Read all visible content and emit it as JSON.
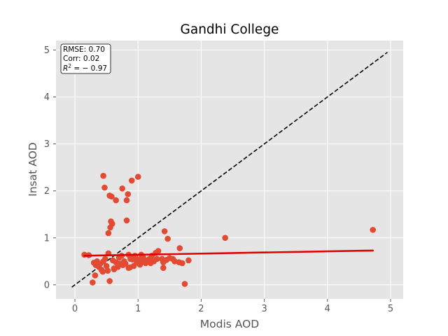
{
  "chart_data": {
    "type": "scatter",
    "title": "Gandhi College",
    "xlabel": "Modis AOD",
    "ylabel": "Insat AOD",
    "xlim": [
      -0.3,
      5.2
    ],
    "ylim": [
      -0.3,
      5.2
    ],
    "xticks": [
      "0",
      "1",
      "2",
      "3",
      "4",
      "5"
    ],
    "yticks": [
      "0",
      "1",
      "2",
      "3",
      "4",
      "5"
    ],
    "grid": true,
    "stats": {
      "rmse": "RMSE: 0.70",
      "corr": "Corr: 0.02",
      "r2_prefix": "R",
      "r2_sup": "2",
      "r2_suffix": " = − 0.97"
    },
    "reference_line": {
      "style": "dashed",
      "color": "#000000",
      "x": [
        -0.05,
        4.95
      ],
      "y": [
        -0.05,
        4.95
      ]
    },
    "fit_line": {
      "color": "#e00000",
      "x": [
        0.15,
        4.72
      ],
      "y": [
        0.62,
        0.73
      ]
    },
    "points": {
      "color": "#e24a33",
      "x": [
        0.45,
        0.47,
        0.75,
        0.9,
        1.0,
        0.55,
        0.58,
        0.84,
        0.65,
        0.82,
        0.57,
        0.59,
        0.82,
        0.53,
        0.15,
        2.38,
        1.42,
        1.47,
        4.72,
        1.66,
        0.53,
        0.85,
        0.95,
        1.05,
        0.3,
        0.35,
        0.4,
        0.48,
        0.6,
        0.65,
        0.7,
        0.72,
        0.78,
        0.88,
        0.92,
        0.98,
        1.02,
        1.08,
        1.12,
        1.18,
        1.22,
        1.28,
        1.32,
        1.38,
        0.33,
        0.38,
        0.42,
        0.5,
        0.62,
        0.68,
        0.76,
        0.8,
        0.87,
        0.93,
        1.03,
        1.1,
        1.15,
        1.2,
        1.25,
        1.3,
        1.4,
        1.45,
        1.5,
        1.55,
        1.58,
        1.65,
        1.7,
        1.8,
        0.56,
        0.44,
        0.74,
        0.96,
        0.45,
        0.62,
        0.85,
        1.4,
        0.22,
        0.28,
        0.55,
        1.74,
        0.32,
        0.52,
        0.7,
        0.91
      ],
      "y": [
        2.32,
        2.07,
        2.05,
        2.22,
        2.3,
        1.9,
        1.88,
        1.93,
        1.8,
        1.8,
        1.35,
        1.3,
        1.37,
        1.1,
        0.64,
        1.0,
        1.14,
        0.98,
        1.17,
        0.78,
        0.67,
        0.64,
        0.62,
        0.64,
        0.47,
        0.5,
        0.45,
        0.55,
        0.52,
        0.48,
        0.58,
        0.45,
        0.5,
        0.55,
        0.6,
        0.47,
        0.53,
        0.58,
        0.46,
        0.55,
        0.62,
        0.68,
        0.72,
        0.55,
        0.42,
        0.38,
        0.32,
        0.4,
        0.35,
        0.38,
        0.42,
        0.45,
        0.37,
        0.4,
        0.43,
        0.48,
        0.52,
        0.46,
        0.5,
        0.55,
        0.48,
        0.53,
        0.57,
        0.55,
        0.5,
        0.48,
        0.46,
        0.52,
        1.22,
        0.28,
        0.62,
        0.58,
        0.5,
        0.33,
        0.36,
        0.36,
        0.63,
        0.05,
        0.08,
        0.02,
        0.2,
        0.3,
        0.44,
        0.54
      ]
    }
  }
}
